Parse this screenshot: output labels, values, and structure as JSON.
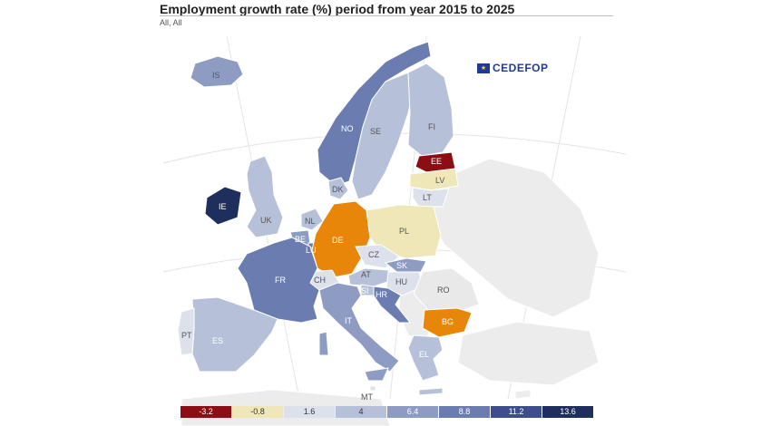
{
  "title": "Employment growth rate (%) period from year 2015 to 2025",
  "subtitle": "All, All",
  "logo": {
    "name": "CEDEFOP",
    "icon": "eu-flag-icon"
  },
  "legend": [
    {
      "label": "-3.2",
      "color": "#8b0e14",
      "text": "#ffffff"
    },
    {
      "label": "-0.8",
      "color": "#efe7b7",
      "text": "#333333"
    },
    {
      "label": "1.6",
      "color": "#dde1ec",
      "text": "#333333"
    },
    {
      "label": "4",
      "color": "#b6c0d9",
      "text": "#333333"
    },
    {
      "label": "6.4",
      "color": "#8e9cc4",
      "text": "#ffffff"
    },
    {
      "label": "8.8",
      "color": "#6a7cb0",
      "text": "#ffffff"
    },
    {
      "label": "11.2",
      "color": "#3c4f8c",
      "text": "#ffffff"
    },
    {
      "label": "13.6",
      "color": "#1e2f5e",
      "text": "#ffffff"
    }
  ],
  "colors": {
    "background_land": "#efefef",
    "no_data": "#e9e9e9",
    "orange": "#e8860a"
  },
  "countries": [
    {
      "code": "IS",
      "color": "#8e9cc4"
    },
    {
      "code": "NO",
      "color": "#6a7cb0"
    },
    {
      "code": "SE",
      "color": "#b6c0d9"
    },
    {
      "code": "FI",
      "color": "#b6c0d9"
    },
    {
      "code": "EE",
      "color": "#8b0e14"
    },
    {
      "code": "LV",
      "color": "#efe7b7"
    },
    {
      "code": "LT",
      "color": "#dde1ec"
    },
    {
      "code": "DK",
      "color": "#b6c0d9"
    },
    {
      "code": "IE",
      "color": "#1e2f5e"
    },
    {
      "code": "UK",
      "color": "#b6c0d9"
    },
    {
      "code": "NL",
      "color": "#b6c0d9"
    },
    {
      "code": "BE",
      "color": "#8e9cc4"
    },
    {
      "code": "LU",
      "color": "#6a7cb0"
    },
    {
      "code": "DE",
      "color": "#e8860a"
    },
    {
      "code": "PL",
      "color": "#efe7b7"
    },
    {
      "code": "CZ",
      "color": "#dde1ec"
    },
    {
      "code": "SK",
      "color": "#8e9cc4"
    },
    {
      "code": "AT",
      "color": "#b6c0d9"
    },
    {
      "code": "HU",
      "color": "#dde1ec"
    },
    {
      "code": "CH",
      "color": "#dde1ec"
    },
    {
      "code": "FR",
      "color": "#6a7cb0"
    },
    {
      "code": "SI",
      "color": "#b6c0d9"
    },
    {
      "code": "HR",
      "color": "#6a7cb0"
    },
    {
      "code": "RO",
      "color": "#e9e9e9"
    },
    {
      "code": "BG",
      "color": "#e8860a"
    },
    {
      "code": "IT",
      "color": "#8e9cc4"
    },
    {
      "code": "ES",
      "color": "#b6c0d9"
    },
    {
      "code": "PT",
      "color": "#dde1ec"
    },
    {
      "code": "EL",
      "color": "#b6c0d9"
    },
    {
      "code": "MT",
      "color": "#dde1ec"
    }
  ]
}
